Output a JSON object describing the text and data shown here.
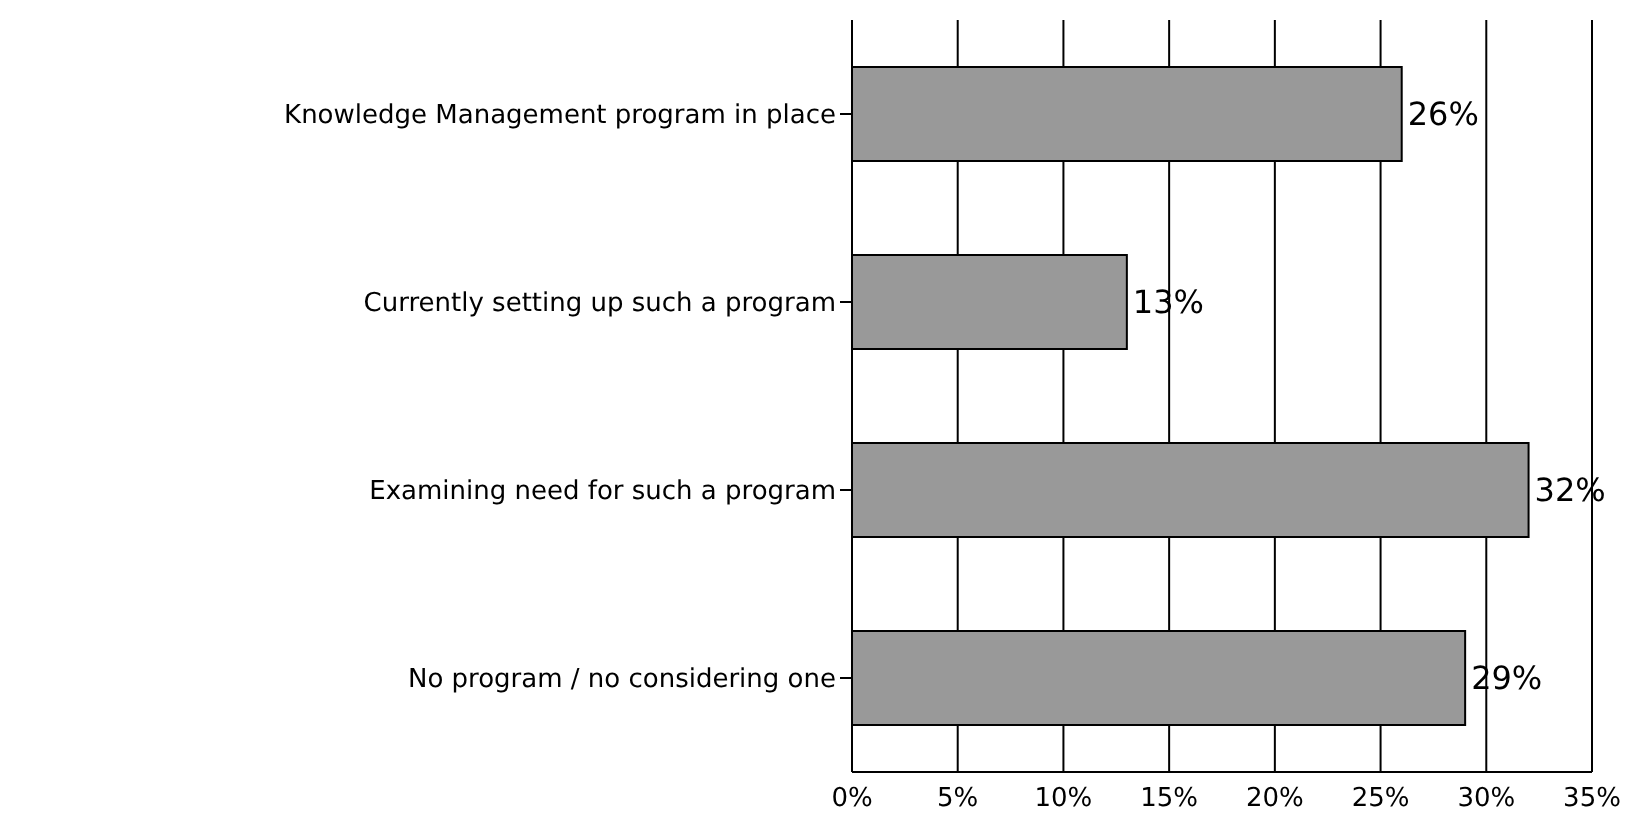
{
  "chart_data": {
    "type": "bar",
    "orientation": "horizontal",
    "categories": [
      "Knowledge Management program in place",
      "Currently setting up such a program",
      "Examining need for such a program",
      "No program / no considering one"
    ],
    "values": [
      26,
      13,
      32,
      29
    ],
    "color": "#999999",
    "value_labels": [
      "26%",
      "13%",
      "32%",
      "29%"
    ],
    "xlim": [
      0,
      35
    ],
    "xticks": [
      {
        "value": 0,
        "label": "0%"
      },
      {
        "value": 5,
        "label": "5%"
      },
      {
        "value": 10,
        "label": "10%"
      },
      {
        "value": 15,
        "label": "15%"
      },
      {
        "value": 20,
        "label": "20%"
      },
      {
        "value": 25,
        "label": "25%"
      },
      {
        "value": 30,
        "label": "30%"
      },
      {
        "value": 35,
        "label": "35%"
      }
    ],
    "grid": "x",
    "legend": false
  }
}
